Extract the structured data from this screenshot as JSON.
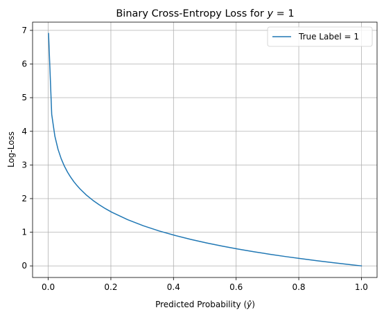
{
  "chart_data": {
    "type": "line",
    "title": "Binary Cross-Entropy Loss for y = 1",
    "title_prefix": "Binary Cross-Entropy Loss for ",
    "title_math_var": "y",
    "title_math_rest": " = 1",
    "xlabel": "Predicted Probability (ŷ)",
    "xlabel_prefix": "Predicted Probability (",
    "xlabel_math": "ŷ",
    "xlabel_suffix": ")",
    "ylabel": "Log-Loss",
    "xlim": [
      -0.05,
      1.05
    ],
    "ylim": [
      -0.345,
      7.245
    ],
    "xticks": [
      0.0,
      0.2,
      0.4,
      0.6,
      0.8,
      1.0
    ],
    "xtick_labels": [
      "0.0",
      "0.2",
      "0.4",
      "0.6",
      "0.8",
      "1.0"
    ],
    "yticks": [
      0,
      1,
      2,
      3,
      4,
      5,
      6,
      7
    ],
    "ytick_labels": [
      "0",
      "1",
      "2",
      "3",
      "4",
      "5",
      "6",
      "7"
    ],
    "grid": true,
    "legend_position": "top-right",
    "series": [
      {
        "name": "True Label = 1",
        "color": "#1f77b4",
        "x": [
          0.001,
          0.0111,
          0.0212,
          0.0313,
          0.0414,
          0.0515,
          0.0616,
          0.0717,
          0.0818,
          0.0919,
          0.102,
          0.1222,
          0.1424,
          0.1626,
          0.1828,
          0.203,
          0.2535,
          0.304,
          0.3545,
          0.405,
          0.4555,
          0.506,
          0.5565,
          0.607,
          0.6575,
          0.708,
          0.7585,
          0.809,
          0.8595,
          0.91,
          0.9605,
          1.0
        ],
        "y": [
          6.908,
          4.501,
          3.854,
          3.464,
          3.184,
          2.966,
          2.787,
          2.635,
          2.503,
          2.387,
          2.283,
          2.102,
          1.949,
          1.817,
          1.7,
          1.595,
          1.373,
          1.191,
          1.037,
          0.904,
          0.786,
          0.681,
          0.586,
          0.499,
          0.419,
          0.345,
          0.276,
          0.212,
          0.151,
          0.094,
          0.04,
          0.0
        ]
      }
    ]
  }
}
